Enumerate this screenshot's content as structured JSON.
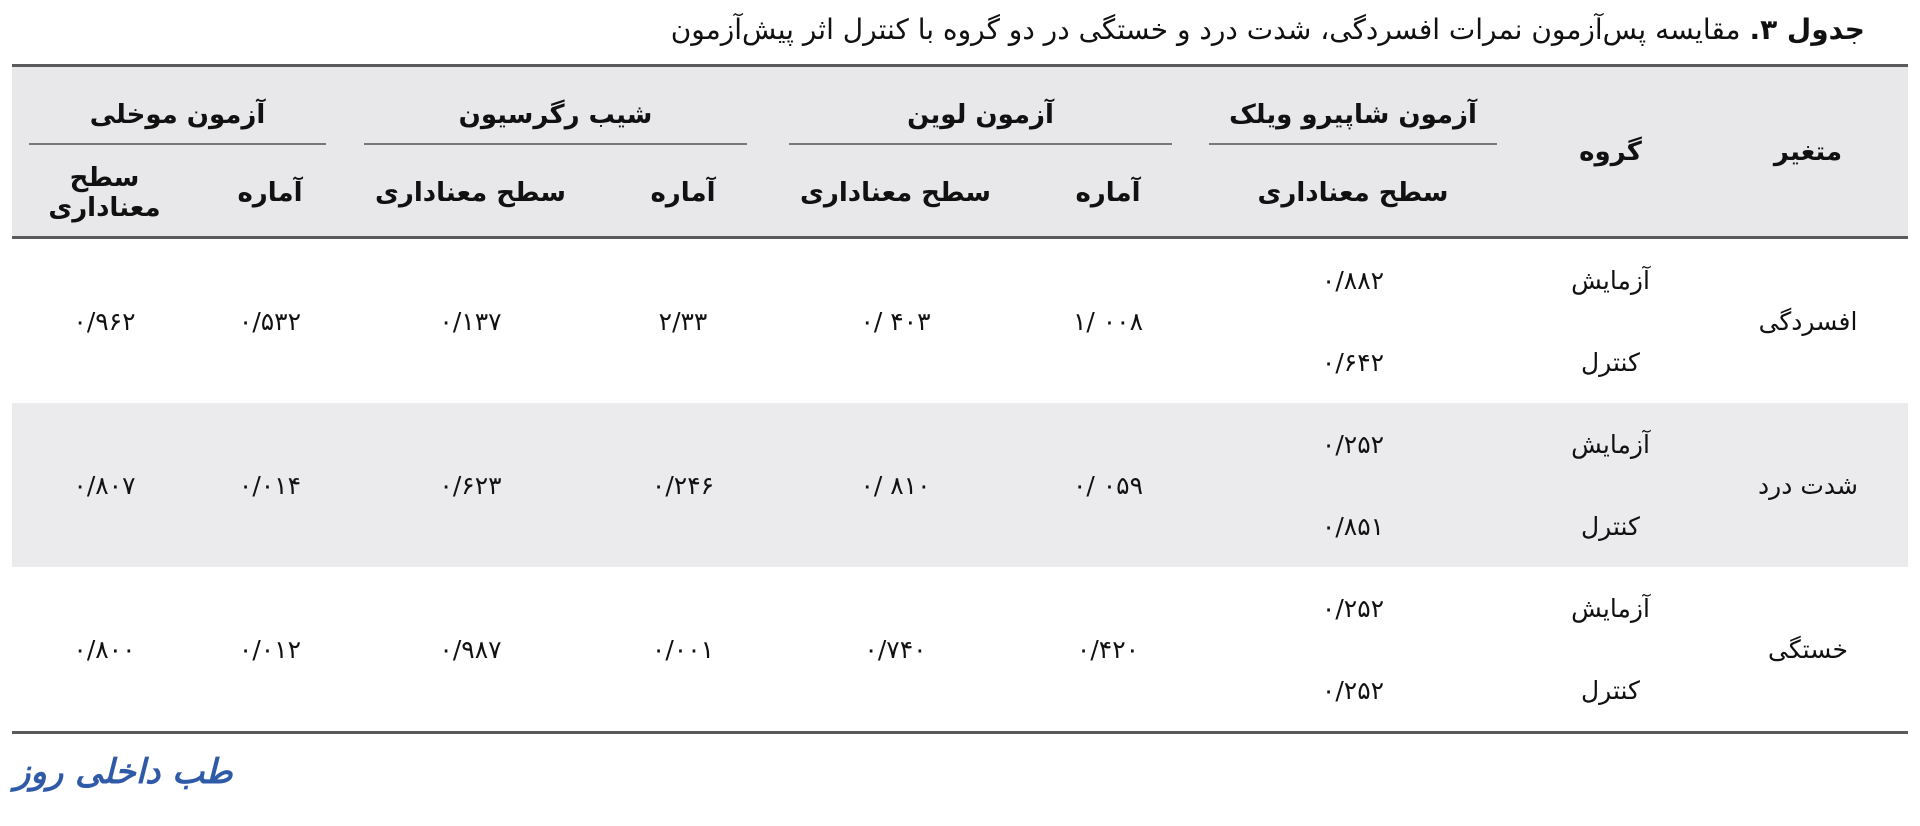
{
  "caption": {
    "label": "جدول ۳.",
    "text": " مقایسه پس‌آزمون نمرات افسردگی، شدت درد و خستگی در دو گروه با کنترل اثر پیش‌آزمون"
  },
  "header": {
    "variable": "متغیر",
    "group": "گروه",
    "shapiro": "آزمون شاپیرو ویلک",
    "levene": "آزمون لوین",
    "regression": "شیب رگرسیون",
    "mauchly": "آزمون موخلی",
    "stat": "آماره",
    "sig": "سطح معناداری"
  },
  "rows": [
    {
      "variable": "افسردگی",
      "group1": "آزمایش",
      "group2": "کنترل",
      "shapiro_sig1": "۰/۸۸۲",
      "shapiro_sig2": "۰/۶۴۲",
      "levene_stat": "۱/ ۰۰۸",
      "levene_sig": "۰/ ۴۰۳",
      "regression_stat": "۲/۳۳",
      "regression_sig": "۰/۱۳۷",
      "mauchly_stat": "۰/۵۳۲",
      "mauchly_sig": "۰/۹۶۲"
    },
    {
      "variable": "شدت درد",
      "group1": "آزمایش",
      "group2": "کنترل",
      "shapiro_sig1": "۰/۲۵۲",
      "shapiro_sig2": "۰/۸۵۱",
      "levene_stat": "۰/ ۰۵۹",
      "levene_sig": "۰/ ۸۱۰",
      "regression_stat": "۰/۲۴۶",
      "regression_sig": "۰/۶۲۳",
      "mauchly_stat": "۰/۰۱۴",
      "mauchly_sig": "۰/۸۰۷"
    },
    {
      "variable": "خستگی",
      "group1": "آزمایش",
      "group2": "کنترل",
      "shapiro_sig1": "۰/۲۵۲",
      "shapiro_sig2": "۰/۲۵۲",
      "levene_stat": "۰/۴۲۰",
      "levene_sig": "۰/۷۴۰",
      "regression_stat": "۰/۰۰۱",
      "regression_sig": "۰/۹۸۷",
      "mauchly_stat": "۰/۰۱۲",
      "mauchly_sig": "۰/۸۰۰"
    }
  ],
  "footer": {
    "logo_text": "طب داخلی روز"
  },
  "colors": {
    "header_bg": "#e8e8eb",
    "band_bg": "#ebebee",
    "rule": "#5a5a5a",
    "logo_blue": "#2f5aa8"
  }
}
